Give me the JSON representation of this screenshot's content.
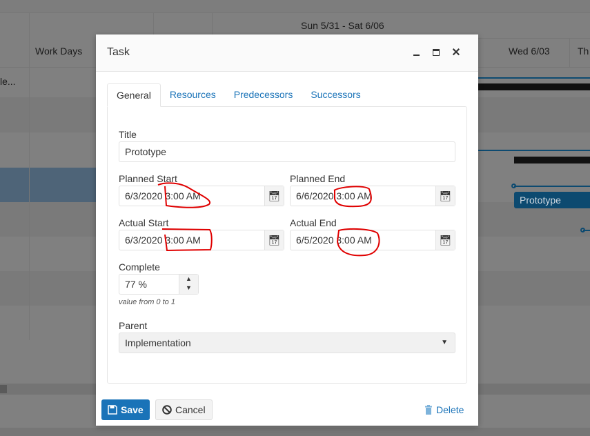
{
  "background": {
    "week_header": "Sun 5/31 - Sat 6/06",
    "column_work_days": "Work Days",
    "day_wed": "Wed 6/03",
    "day_thu": "Th",
    "truncated_row": "le...",
    "bar_label": "Prototype"
  },
  "dialog": {
    "title": "Task",
    "tabs": [
      {
        "label": "General",
        "active": true
      },
      {
        "label": "Resources"
      },
      {
        "label": "Predecessors"
      },
      {
        "label": "Successors"
      }
    ],
    "fields": {
      "title_label": "Title",
      "title_value": "Prototype",
      "planned_start_label": "Planned Start",
      "planned_start_value": "6/3/2020 3:00 AM",
      "planned_end_label": "Planned End",
      "planned_end_value": "6/6/2020 3:00 AM",
      "actual_start_label": "Actual Start",
      "actual_start_value": "6/3/2020 3:00 AM",
      "actual_end_label": "Actual End",
      "actual_end_value": "6/5/2020 3:00 AM",
      "complete_label": "Complete",
      "complete_value": "77 %",
      "complete_hint": "value from 0 to 1",
      "parent_label": "Parent",
      "parent_value": "Implementation"
    },
    "footer": {
      "save": "Save",
      "cancel": "Cancel",
      "delete": "Delete"
    }
  },
  "colors": {
    "accent": "#1a73b8",
    "annotation": "#e00000",
    "overlay": "#808080"
  }
}
